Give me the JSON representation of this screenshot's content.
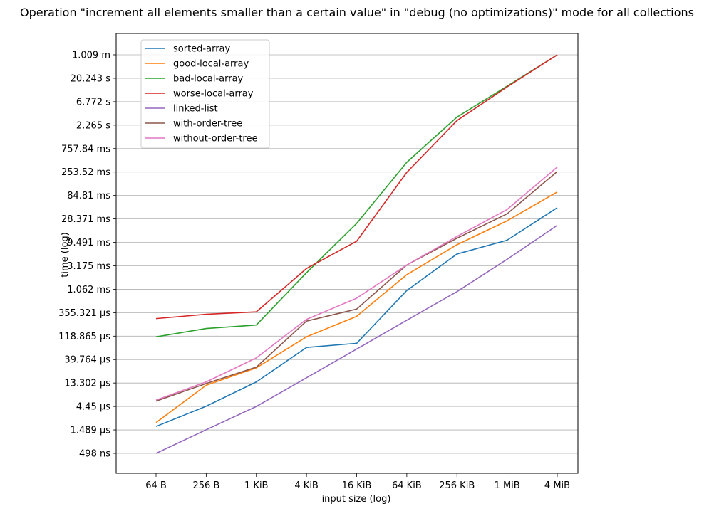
{
  "chart_data": {
    "type": "line",
    "title": "Operation \"increment all elements smaller than a certain value\" in \"debug (no optimizations)\" mode for all collections",
    "xlabel": "input size (log)",
    "ylabel": "time (log)",
    "scale": "log",
    "grid": "horizontal",
    "legend_position": "top-left",
    "categories": [
      "64 B",
      "256 B",
      "1 KiB",
      "4 KiB",
      "16 KiB",
      "64 KiB",
      "256 KiB",
      "1 MiB",
      "4 MiB"
    ],
    "y_ticks": [
      "498 ns",
      "1.489 µs",
      "4.45 µs",
      "13.302 µs",
      "39.764 µs",
      "118.865 µs",
      "355.321 µs",
      "1.062 ms",
      "3.175 ms",
      "9.491 ms",
      "28.371 ms",
      "84.81 ms",
      "253.52 ms",
      "757.84 ms",
      "2.265 s",
      "6.772 s",
      "20.243 s",
      "1.009 m"
    ],
    "y_tick_seconds": [
      4.98e-07,
      1.489e-06,
      4.45e-06,
      1.3302e-05,
      3.9764e-05,
      0.000118865,
      0.000355321,
      0.001062,
      0.003175,
      0.009491,
      0.028371,
      0.08481,
      0.25352,
      0.75784,
      2.265,
      6.772,
      20.243,
      60.54
    ],
    "series": [
      {
        "name": "sorted-array",
        "color": "#1f77b4",
        "values": [
          1.75e-06,
          4.5e-06,
          1.4e-05,
          7e-05,
          8.5e-05,
          0.001,
          0.0055,
          0.0105,
          0.048
        ]
      },
      {
        "name": "good-local-array",
        "color": "#ff7f0e",
        "values": [
          2.1e-06,
          1.2e-05,
          2.7e-05,
          0.000115,
          0.0003,
          0.0021,
          0.0085,
          0.026,
          0.1
        ]
      },
      {
        "name": "bad-local-array",
        "color": "#2ca02c",
        "values": [
          0.000115,
          0.00017,
          0.0002,
          0.0023,
          0.023,
          0.4,
          3.3,
          14.0,
          60.5
        ]
      },
      {
        "name": "worse-local-array",
        "color": "#d62728",
        "values": [
          0.00027,
          0.00033,
          0.00037,
          0.0028,
          0.01,
          0.25,
          2.8,
          13.5,
          60.5
        ]
      },
      {
        "name": "linked-list",
        "color": "#9467bd",
        "values": [
          4.98e-07,
          1.5e-06,
          4.45e-06,
          1.7e-05,
          6.5e-05,
          0.00025,
          0.00095,
          0.0043,
          0.021
        ]
      },
      {
        "name": "with-order-tree",
        "color": "#8c564b",
        "values": [
          5.7e-06,
          1.3e-05,
          2.8e-05,
          0.00024,
          0.00042,
          0.0033,
          0.0115,
          0.036,
          0.26
        ]
      },
      {
        "name": "without-order-tree",
        "color": "#e377c2",
        "values": [
          6e-06,
          1.4e-05,
          4.3e-05,
          0.00026,
          0.0007,
          0.0033,
          0.0125,
          0.044,
          0.32
        ]
      }
    ]
  }
}
